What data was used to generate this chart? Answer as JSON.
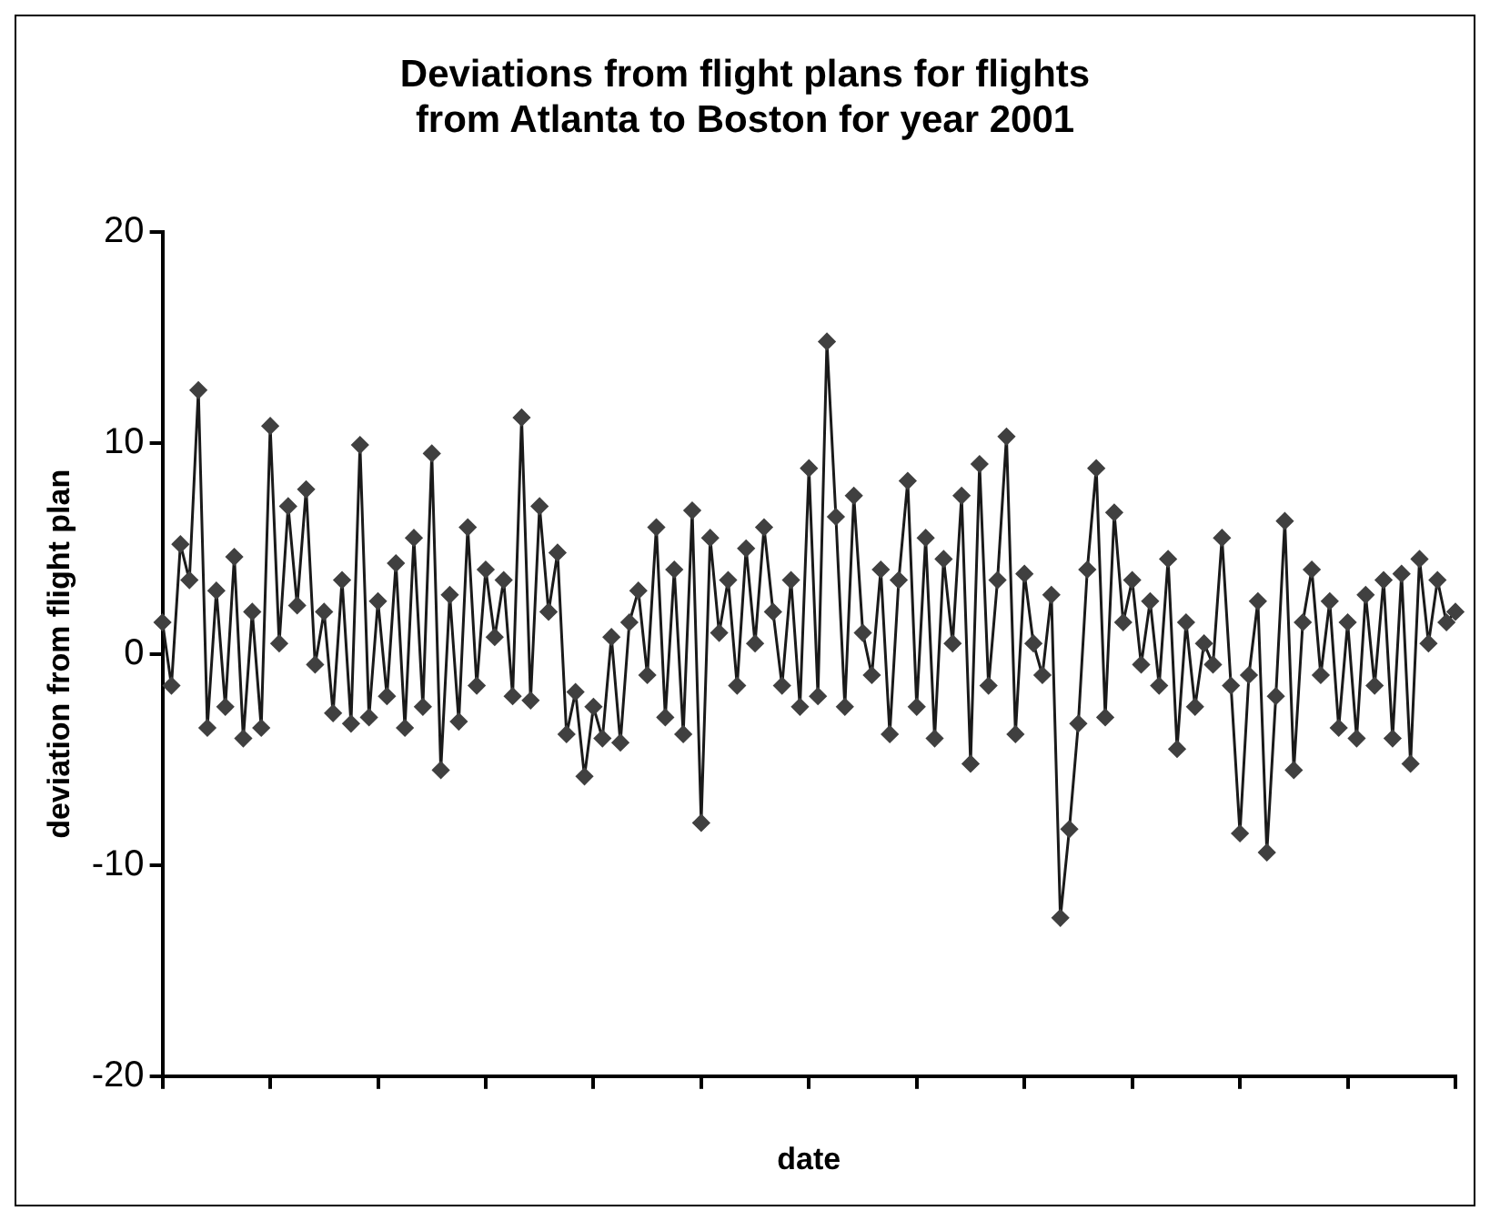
{
  "chart_data": {
    "type": "line",
    "title": [
      "Deviations from flight plans for flights",
      "from Atlanta to Boston for year 2001"
    ],
    "xlabel": "date",
    "ylabel": "deviation from flight plan",
    "categories": [
      null,
      null,
      null,
      null,
      null,
      null,
      null,
      null,
      null,
      null,
      null,
      null,
      null,
      null,
      null,
      null,
      null,
      null,
      null,
      null,
      null,
      null,
      null,
      null,
      null,
      null,
      null,
      null,
      null,
      null,
      null,
      null,
      null,
      null,
      null,
      null,
      null,
      null,
      null,
      null,
      null,
      null,
      null,
      null,
      null,
      null,
      null,
      null,
      null,
      null,
      null,
      null,
      null,
      null,
      null,
      null,
      null,
      null,
      null,
      null,
      null,
      null,
      null,
      null,
      null,
      null,
      null,
      null,
      null,
      null,
      null,
      null,
      null,
      null,
      null,
      null,
      null,
      null,
      null,
      null,
      null,
      null,
      null,
      null,
      null,
      null,
      null,
      null,
      null,
      null,
      null,
      null,
      null,
      null,
      null,
      null,
      null,
      null,
      null,
      null,
      null,
      null,
      null,
      null,
      null,
      null,
      null,
      null,
      null,
      null,
      null,
      null,
      null,
      null,
      null,
      null,
      null,
      null,
      null,
      null,
      null,
      null,
      null,
      null,
      null,
      null,
      null,
      null,
      null,
      null,
      null,
      null,
      null,
      null,
      null,
      null,
      null,
      null,
      null,
      null,
      null,
      null,
      null,
      null,
      null
    ],
    "series": [
      {
        "color": "#404040",
        "values": [
          1.5,
          -1.5,
          5.2,
          3.5,
          12.5,
          -3.5,
          3,
          -2.5,
          4.6,
          -4,
          2,
          -3.5,
          10.8,
          0.5,
          7,
          2.3,
          7.8,
          -0.5,
          2,
          -2.8,
          3.5,
          -3.3,
          9.9,
          -3,
          2.5,
          -2,
          4.3,
          -3.5,
          5.5,
          -2.5,
          9.5,
          -5.5,
          2.8,
          -3.2,
          6,
          -1.5,
          4,
          0.8,
          3.5,
          -2,
          11.2,
          -2.2,
          7,
          2,
          4.8,
          -3.8,
          -1.8,
          -5.8,
          -2.5,
          -4,
          0.8,
          -4.2,
          1.5,
          3,
          -1,
          6,
          -3,
          4,
          -3.8,
          6.8,
          -8,
          5.5,
          1,
          3.5,
          -1.5,
          5,
          0.5,
          6,
          2,
          -1.5,
          3.5,
          -2.5,
          8.8,
          -2,
          14.8,
          6.5,
          -2.5,
          7.5,
          1,
          -1,
          4,
          -3.8,
          3.5,
          8.2,
          -2.5,
          5.5,
          -4,
          4.5,
          0.5,
          7.5,
          -5.2,
          9,
          -1.5,
          3.5,
          10.3,
          -3.8,
          3.8,
          0.5,
          -1,
          2.8,
          -12.5,
          -8.3,
          -3.3,
          4,
          8.8,
          -3,
          6.7,
          1.5,
          3.5,
          -0.5,
          2.5,
          -1.5,
          4.5,
          -4.5,
          1.5,
          -2.5,
          0.5,
          -0.5,
          5.5,
          -1.5,
          -8.5,
          -1,
          2.5,
          -9.4,
          -2,
          6.3,
          -5.5,
          1.5,
          4,
          -1,
          2.5,
          -3.5,
          1.5,
          -4,
          2.8,
          -1.5,
          3.5,
          -4,
          3.8,
          -5.2,
          4.5,
          0.5,
          3.5,
          1.5,
          2
        ]
      }
    ],
    "ylim": [
      -20,
      20
    ],
    "yticks": [
      -20,
      -10,
      0,
      10,
      20
    ],
    "grid": false,
    "legend": false,
    "marker": "diamond",
    "line_style": "solid"
  }
}
